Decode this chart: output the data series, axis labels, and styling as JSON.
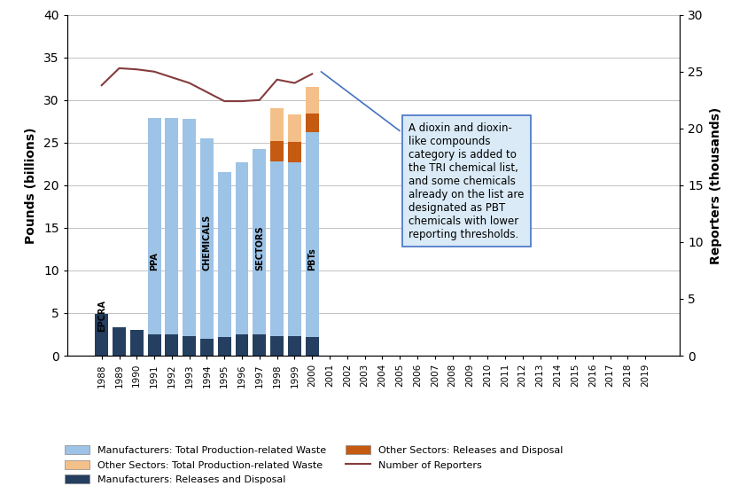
{
  "years": [
    1988,
    1989,
    1990,
    1991,
    1992,
    1993,
    1994,
    1995,
    1996,
    1997,
    1998,
    1999,
    2000,
    2001,
    2002,
    2003,
    2004,
    2005,
    2006,
    2007,
    2008,
    2009,
    2010,
    2011,
    2012,
    2013,
    2014,
    2015,
    2016,
    2017,
    2018,
    2019
  ],
  "mfr_releases": [
    4.9,
    3.3,
    3.0,
    2.5,
    2.5,
    2.3,
    2.0,
    2.2,
    2.5,
    2.5,
    2.3,
    2.3,
    2.2,
    0,
    0,
    0,
    0,
    0,
    0,
    0,
    0,
    0,
    0,
    0,
    0,
    0,
    0,
    0,
    0,
    0,
    0,
    0
  ],
  "mfr_above_releases": [
    0,
    0,
    0,
    25.4,
    25.4,
    25.5,
    23.5,
    19.3,
    20.2,
    21.8,
    20.5,
    20.4,
    24.0,
    0,
    0,
    0,
    0,
    0,
    0,
    0,
    0,
    0,
    0,
    0,
    0,
    0,
    0,
    0,
    0,
    0,
    0,
    0
  ],
  "other_releases": [
    0,
    0,
    0,
    0,
    0,
    0,
    0,
    0,
    0,
    0,
    2.35,
    2.35,
    2.2,
    0,
    0,
    0,
    0,
    0,
    0,
    0,
    0,
    0,
    0,
    0,
    0,
    0,
    0,
    0,
    0,
    0,
    0,
    0
  ],
  "other_above_releases": [
    0,
    0,
    0,
    0,
    0,
    0,
    0,
    0,
    0,
    0,
    3.85,
    3.3,
    3.1,
    0,
    0,
    0,
    0,
    0,
    0,
    0,
    0,
    0,
    0,
    0,
    0,
    0,
    0,
    0,
    0,
    0,
    0,
    0
  ],
  "reporters": [
    23.8,
    25.3,
    25.2,
    25.0,
    24.5,
    24.0,
    23.2,
    22.4,
    22.4,
    22.5,
    24.3,
    24.0,
    24.8,
    null,
    null,
    null,
    null,
    null,
    null,
    null,
    null,
    null,
    null,
    null,
    null,
    null,
    null,
    null,
    null,
    null,
    null,
    null
  ],
  "bar_color_mfr_total": "#9DC3E6",
  "bar_color_mfr_releases": "#243F60",
  "bar_color_other_total": "#F4C08A",
  "bar_color_other_releases": "#C55A11",
  "line_color_reporters": "#843C3C",
  "annotation_box_facecolor": "#DAEAF6",
  "annotation_box_edgecolor": "#4472C4",
  "annotation_text": "A dioxin and dioxin-\nlike compounds\ncategory is added to\nthe TRI chemical list,\nand some chemicals\nalready on the list are\ndesignated as PBT\nchemicals with lower\nreporting thresholds.",
  "label_epcra": "EPCRA",
  "label_ppa": "PPA",
  "label_chemicals": "CHEMICALS",
  "label_sectors": "SECTORS",
  "label_pbts": "PBTs",
  "ylabel_left": "Pounds (billions)",
  "ylabel_right": "Reporters (thousands)",
  "ylim_left": [
    0,
    40
  ],
  "ylim_right": [
    0,
    30
  ],
  "yticks_left": [
    0,
    5,
    10,
    15,
    20,
    25,
    30,
    35,
    40
  ],
  "yticks_right": [
    0,
    5,
    10,
    15,
    20,
    25,
    30
  ],
  "legend_items": [
    "Manufacturers: Total Production-related Waste",
    "Other Sectors: Total Production-related Waste",
    "Manufacturers: Releases and Disposal",
    "Other Sectors: Releases and Disposal",
    "Number of Reporters"
  ]
}
